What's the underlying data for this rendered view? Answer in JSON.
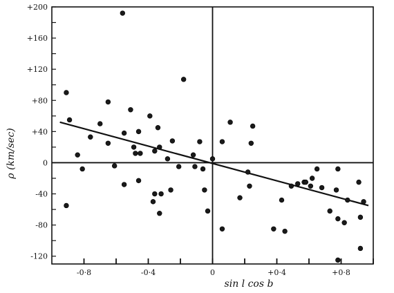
{
  "chart_data": {
    "type": "scatter",
    "xlabel": "sin l cos b",
    "ylabel": "ρ (km/sec)",
    "xlim": [
      -1.0,
      1.0
    ],
    "ylim": [
      -130,
      200
    ],
    "x_ticks": [
      -0.8,
      -0.4,
      0,
      0.4,
      0.8
    ],
    "x_tick_labels": [
      "-0·8",
      "-0·4",
      "0",
      "+0·4",
      "+0·8"
    ],
    "y_ticks": [
      200,
      160,
      120,
      80,
      40,
      0,
      -40,
      -80,
      -120
    ],
    "y_tick_labels": [
      "+200",
      "+160",
      "+120",
      "+80",
      "+40",
      "0",
      "-40",
      "-80",
      "-120"
    ],
    "grid": false,
    "zero_lines": true,
    "points": [
      {
        "x": -0.91,
        "y": 90
      },
      {
        "x": -0.89,
        "y": 55
      },
      {
        "x": -0.91,
        "y": -55
      },
      {
        "x": -0.84,
        "y": 10
      },
      {
        "x": -0.81,
        "y": -8
      },
      {
        "x": -0.76,
        "y": 33
      },
      {
        "x": -0.7,
        "y": 50
      },
      {
        "x": -0.65,
        "y": 78
      },
      {
        "x": -0.65,
        "y": 25
      },
      {
        "x": -0.61,
        "y": -4
      },
      {
        "x": -0.56,
        "y": 192
      },
      {
        "x": -0.55,
        "y": 38
      },
      {
        "x": -0.55,
        "y": -28
      },
      {
        "x": -0.51,
        "y": 68
      },
      {
        "x": -0.49,
        "y": 20
      },
      {
        "x": -0.48,
        "y": 12
      },
      {
        "x": -0.46,
        "y": 40
      },
      {
        "x": -0.45,
        "y": 12
      },
      {
        "x": -0.46,
        "y": -23
      },
      {
        "x": -0.39,
        "y": 60
      },
      {
        "x": -0.37,
        "y": -50
      },
      {
        "x": -0.36,
        "y": 15
      },
      {
        "x": -0.36,
        "y": -40
      },
      {
        "x": -0.34,
        "y": 45
      },
      {
        "x": -0.33,
        "y": 20
      },
      {
        "x": -0.33,
        "y": -65
      },
      {
        "x": -0.32,
        "y": -40
      },
      {
        "x": -0.28,
        "y": 5
      },
      {
        "x": -0.25,
        "y": 28
      },
      {
        "x": -0.26,
        "y": -35
      },
      {
        "x": -0.21,
        "y": -5
      },
      {
        "x": -0.18,
        "y": 107
      },
      {
        "x": -0.12,
        "y": 10
      },
      {
        "x": -0.11,
        "y": -5
      },
      {
        "x": -0.08,
        "y": 27
      },
      {
        "x": -0.05,
        "y": -35
      },
      {
        "x": -0.06,
        "y": -8
      },
      {
        "x": -0.03,
        "y": -62
      },
      {
        "x": 0.0,
        "y": 5
      },
      {
        "x": 0.06,
        "y": 27
      },
      {
        "x": 0.06,
        "y": -85
      },
      {
        "x": 0.11,
        "y": 52
      },
      {
        "x": 0.17,
        "y": -45
      },
      {
        "x": 0.22,
        "y": -12
      },
      {
        "x": 0.23,
        "y": -30
      },
      {
        "x": 0.25,
        "y": 47
      },
      {
        "x": 0.24,
        "y": 25
      },
      {
        "x": 0.38,
        "y": -85
      },
      {
        "x": 0.43,
        "y": -48
      },
      {
        "x": 0.45,
        "y": -88
      },
      {
        "x": 0.49,
        "y": -30
      },
      {
        "x": 0.53,
        "y": -27
      },
      {
        "x": 0.57,
        "y": -25
      },
      {
        "x": 0.62,
        "y": -20
      },
      {
        "x": 0.58,
        "y": -25
      },
      {
        "x": 0.61,
        "y": -30
      },
      {
        "x": 0.65,
        "y": -8
      },
      {
        "x": 0.68,
        "y": -32
      },
      {
        "x": 0.73,
        "y": -62
      },
      {
        "x": 0.78,
        "y": -8
      },
      {
        "x": 0.77,
        "y": -35
      },
      {
        "x": 0.78,
        "y": -72
      },
      {
        "x": 0.78,
        "y": -125
      },
      {
        "x": 0.82,
        "y": -77
      },
      {
        "x": 0.84,
        "y": -48
      },
      {
        "x": 0.91,
        "y": -25
      },
      {
        "x": 0.94,
        "y": -50
      },
      {
        "x": 0.92,
        "y": -70
      },
      {
        "x": 0.92,
        "y": -110
      }
    ],
    "fit_line": {
      "x": [
        -0.95,
        0.97
      ],
      "y": [
        52,
        -55
      ]
    }
  }
}
